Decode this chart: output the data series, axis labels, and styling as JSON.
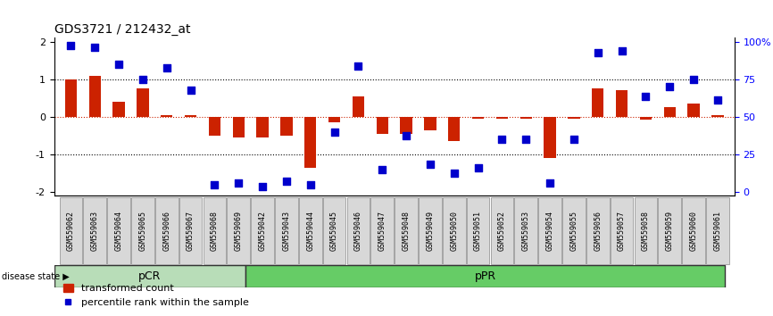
{
  "title": "GDS3721 / 212432_at",
  "categories": [
    "GSM559062",
    "GSM559063",
    "GSM559064",
    "GSM559065",
    "GSM559066",
    "GSM559067",
    "GSM559068",
    "GSM559069",
    "GSM559042",
    "GSM559043",
    "GSM559044",
    "GSM559045",
    "GSM559046",
    "GSM559047",
    "GSM559048",
    "GSM559049",
    "GSM559050",
    "GSM559051",
    "GSM559052",
    "GSM559053",
    "GSM559054",
    "GSM559055",
    "GSM559056",
    "GSM559057",
    "GSM559058",
    "GSM559059",
    "GSM559060",
    "GSM559061"
  ],
  "bar_values": [
    1.0,
    1.1,
    0.4,
    0.75,
    0.05,
    0.05,
    -0.5,
    -0.55,
    -0.55,
    -0.5,
    -1.35,
    -0.15,
    0.55,
    -0.45,
    -0.45,
    -0.35,
    -0.65,
    -0.05,
    -0.05,
    -0.05,
    -1.1,
    -0.05,
    0.75,
    0.7,
    -0.08,
    0.25,
    0.35,
    0.05
  ],
  "percentile_values": [
    1.9,
    1.85,
    1.4,
    1.0,
    1.3,
    0.7,
    -1.8,
    -1.75,
    -1.85,
    -1.7,
    -1.8,
    -0.4,
    1.35,
    -1.4,
    -0.5,
    -1.25,
    -1.5,
    -1.35,
    -0.6,
    -0.6,
    -1.75,
    -0.6,
    1.7,
    1.75,
    0.55,
    0.8,
    1.0,
    0.45
  ],
  "pCR_count": 8,
  "pPR_count": 20,
  "bar_color": "#cc2200",
  "dot_color": "#0000cc",
  "pCR_color": "#b8ddb8",
  "pPR_color": "#66cc66",
  "ylim": [
    -2.1,
    2.1
  ],
  "yticks": [
    -2,
    -1,
    0,
    1,
    2
  ],
  "right_ytick_labels": [
    "0",
    "25",
    "50",
    "75",
    "100%"
  ],
  "right_ytick_positions": [
    -2,
    -1,
    0,
    1,
    2
  ],
  "dotted_lines": [
    -1,
    1
  ],
  "legend_bar_label": "transformed count",
  "legend_dot_label": "percentile rank within the sample",
  "disease_state_label": "disease state",
  "pCR_label": "pCR",
  "pPR_label": "pPR",
  "background_color": "#ffffff",
  "bar_width": 0.5,
  "dot_size": 35,
  "tick_fontsize": 8,
  "title_fontsize": 10,
  "xtick_fontsize": 6,
  "band_fontsize": 9
}
